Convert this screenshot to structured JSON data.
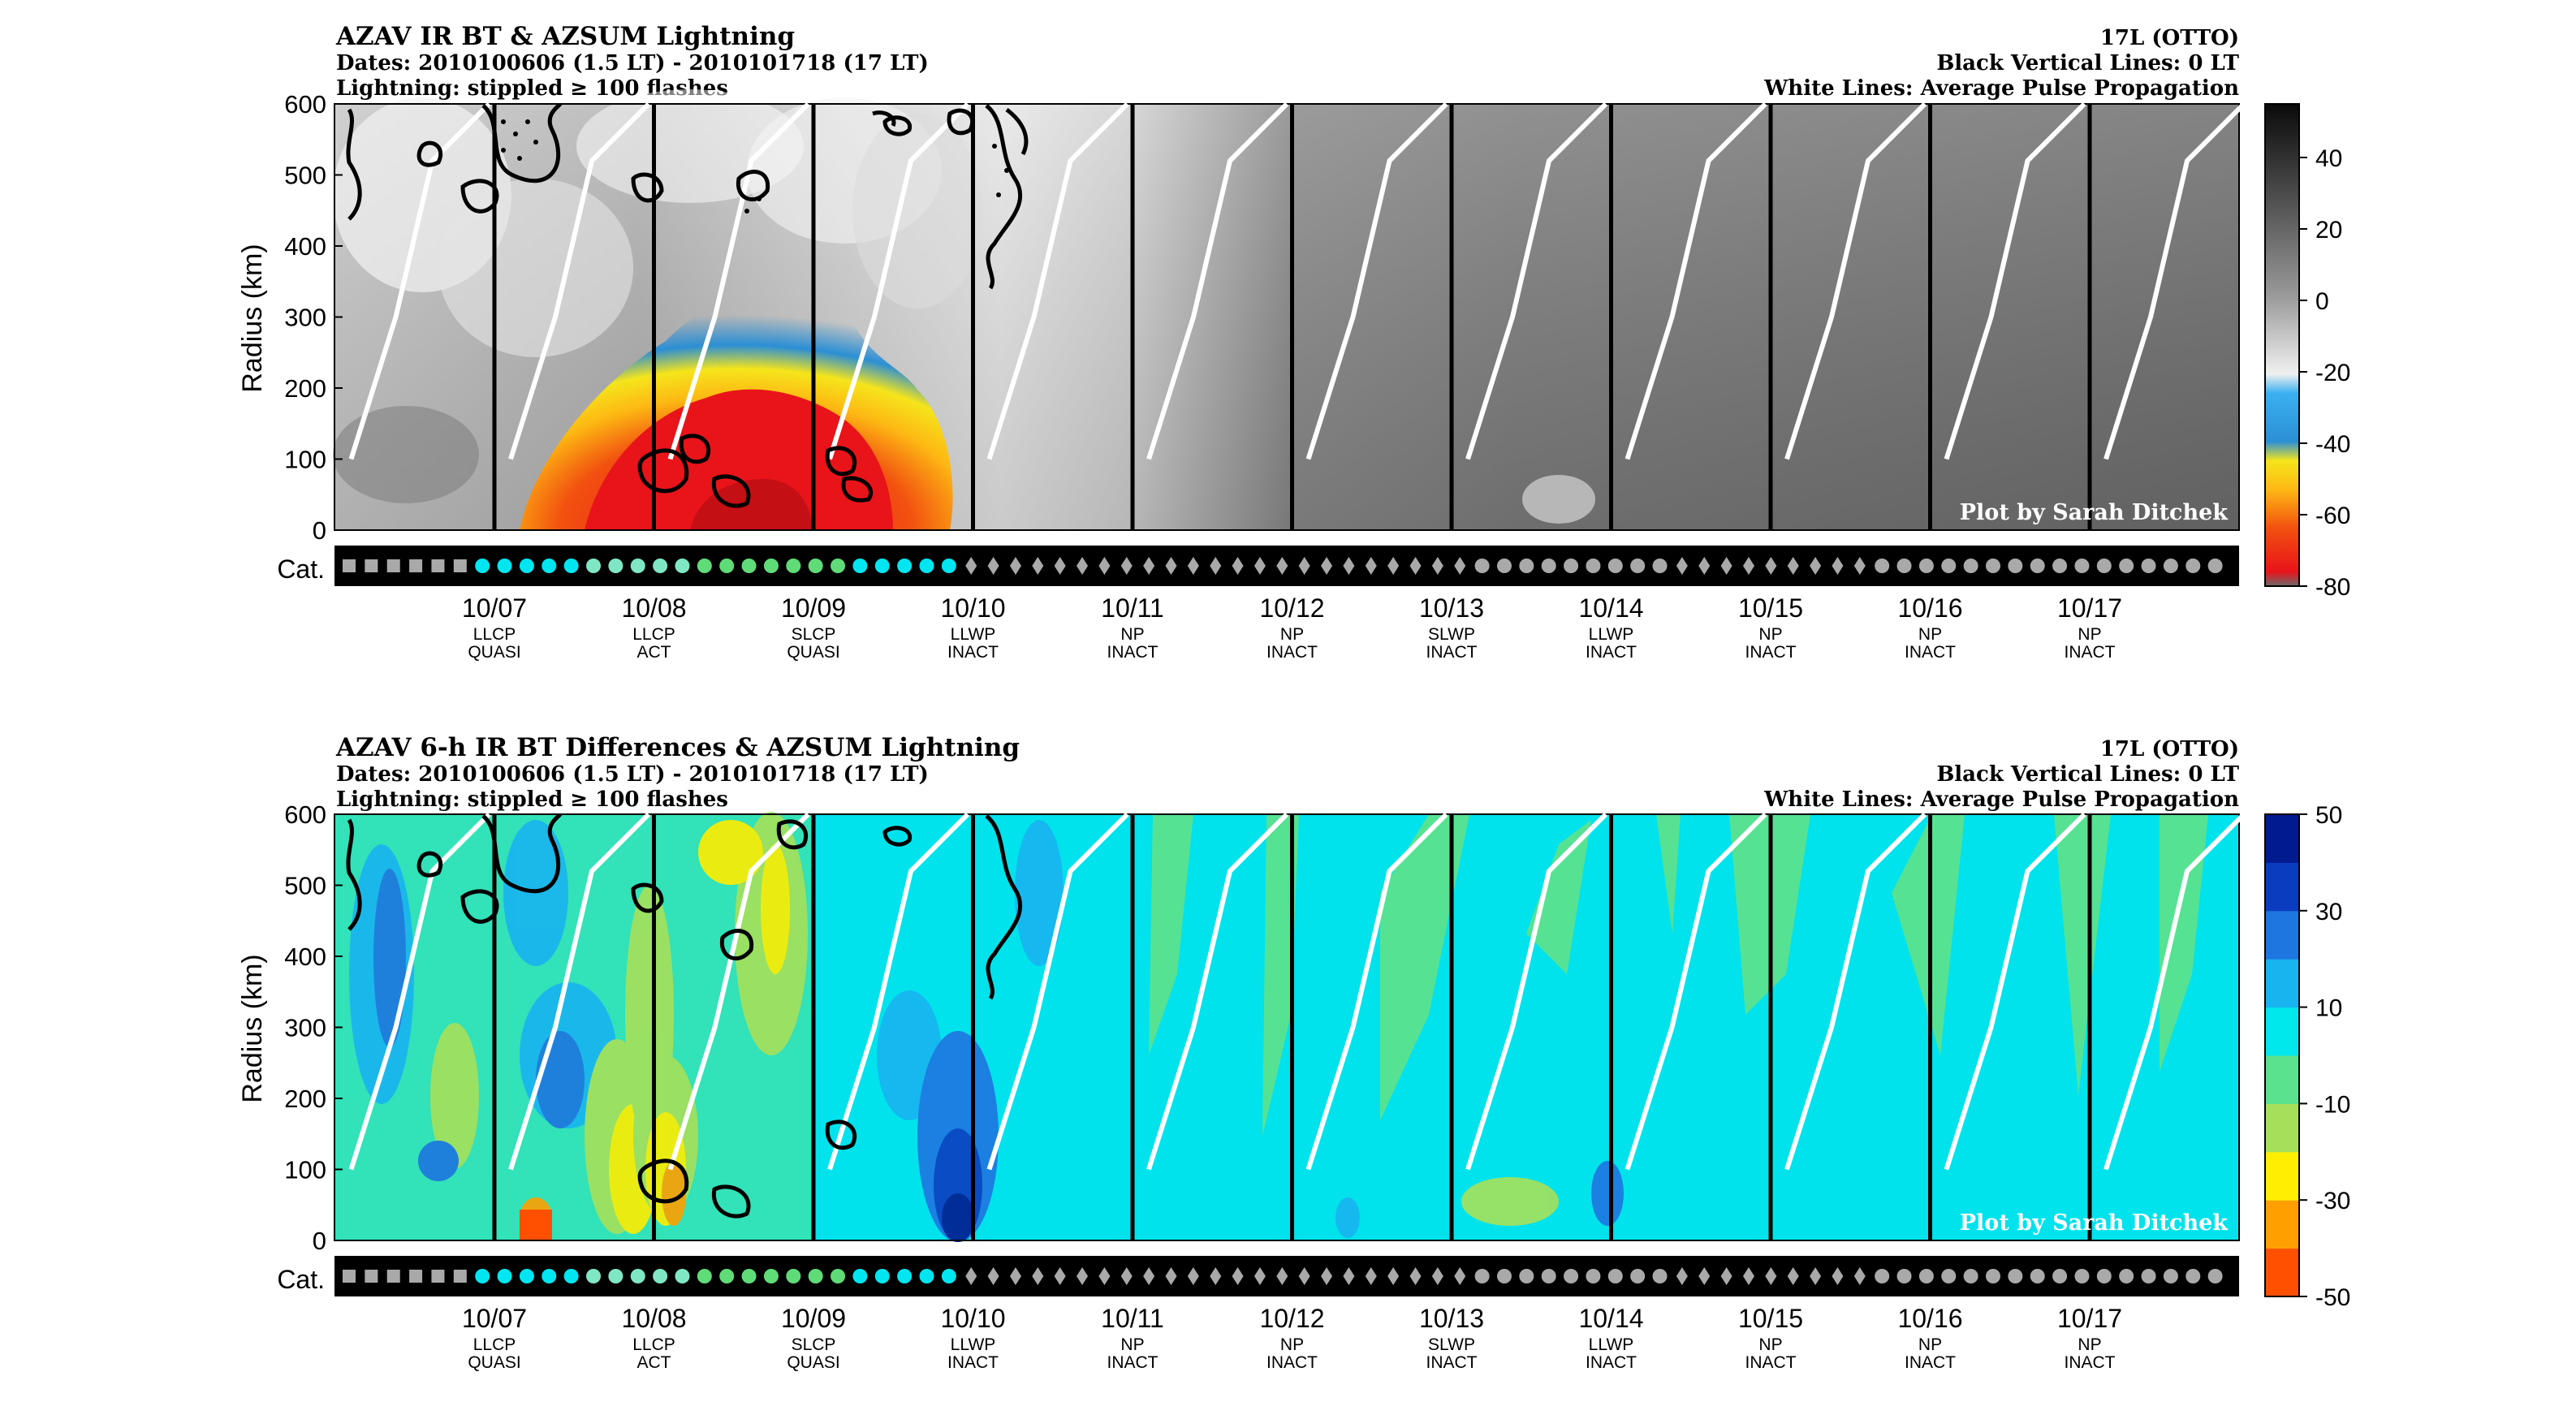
{
  "panels": [
    {
      "title_lines": [
        "AZAV IR BT & AZSUM Lightning",
        "Dates: 2010100606 (1.5 LT) - 2010101718 (17 LT)",
        "Lightning: stippled ≥ 100 flashes"
      ],
      "right_lines": [
        "17L (OTTO)",
        "Black Vertical Lines: 0 LT",
        "White Lines: Average Pulse Propagation"
      ],
      "watermark": "Plot by Sarah Ditchek"
    },
    {
      "title_lines": [
        "AZAV 6-h IR BT Differences & AZSUM Lightning",
        "Dates: 2010100606 (1.5 LT) - 2010101718 (17 LT)",
        "Lightning: stippled ≥ 100 flashes"
      ],
      "right_lines": [
        "17L (OTTO)",
        "Black Vertical Lines: 0 LT",
        "White Lines: Average Pulse Propagation"
      ],
      "watermark": "Plot by Sarah Ditchek"
    }
  ],
  "chart_data": [
    {
      "type": "heatmap",
      "title": "AZAV IR BT & AZSUM Lightning",
      "ylabel": "Radius (km)",
      "ylim": [
        0,
        600
      ],
      "yticks": [
        0,
        100,
        200,
        300,
        400,
        500,
        600
      ],
      "cat_label": "Cat.",
      "xticks": [
        "10/07",
        "10/08",
        "10/09",
        "10/10",
        "10/11",
        "10/12",
        "10/13",
        "10/14",
        "10/15",
        "10/16",
        "10/17"
      ],
      "xsub1": [
        "LLCP",
        "LLCP",
        "SLCP",
        "LLWP",
        "NP",
        "NP",
        "SLWP",
        "LLWP",
        "NP",
        "NP",
        "NP"
      ],
      "xsub2": [
        "QUASI",
        "ACT",
        "QUASI",
        "INACT",
        "INACT",
        "INACT",
        "INACT",
        "INACT",
        "INACT",
        "INACT",
        "INACT"
      ],
      "colorbar": {
        "ticks": [
          40,
          20,
          0,
          -20,
          -40,
          -60,
          -80
        ],
        "range": [
          -80,
          55
        ],
        "colors": [
          "#6a6a6a",
          "#e8141a",
          "#f96e0c",
          "#fdb813",
          "#f5e51b",
          "#2b8fd4",
          "#e9e9e9",
          "#888888",
          "#202020"
        ]
      },
      "categories_sequence": "6 grey squares, 5 cyan circles, 5 light-green circles, 7 green circles, 5 cyan circles, 23 grey diamonds, 9 grey circles, 9 grey diamonds, 16 grey circles",
      "cloud_cold_region_C": [
        {
          "radius_max_km": 320,
          "date_range": "10/07 12Z - 10/09 18Z",
          "min_bt_c": -80
        }
      ]
    },
    {
      "type": "heatmap",
      "title": "AZAV 6-h IR BT Differences & AZSUM Lightning",
      "ylabel": "Radius (km)",
      "ylim": [
        0,
        600
      ],
      "yticks": [
        0,
        100,
        200,
        300,
        400,
        500,
        600
      ],
      "cat_label": "Cat.",
      "xticks": [
        "10/07",
        "10/08",
        "10/09",
        "10/10",
        "10/11",
        "10/12",
        "10/13",
        "10/14",
        "10/15",
        "10/16",
        "10/17"
      ],
      "xsub1": [
        "LLCP",
        "LLCP",
        "SLCP",
        "LLWP",
        "NP",
        "NP",
        "SLWP",
        "LLWP",
        "NP",
        "NP",
        "NP"
      ],
      "xsub2": [
        "QUASI",
        "ACT",
        "QUASI",
        "INACT",
        "INACT",
        "INACT",
        "INACT",
        "INACT",
        "INACT",
        "INACT",
        "INACT"
      ],
      "colorbar": {
        "ticks": [
          50,
          30,
          10,
          -10,
          -30,
          -50
        ],
        "range": [
          -50,
          50
        ],
        "colors": [
          "#ff5000",
          "#ffa000",
          "#ffee00",
          "#a6e05a",
          "#5be28e",
          "#00e8ec",
          "#18b4f0",
          "#1e76e0",
          "#0a3cc0",
          "#001a90"
        ]
      }
    }
  ]
}
